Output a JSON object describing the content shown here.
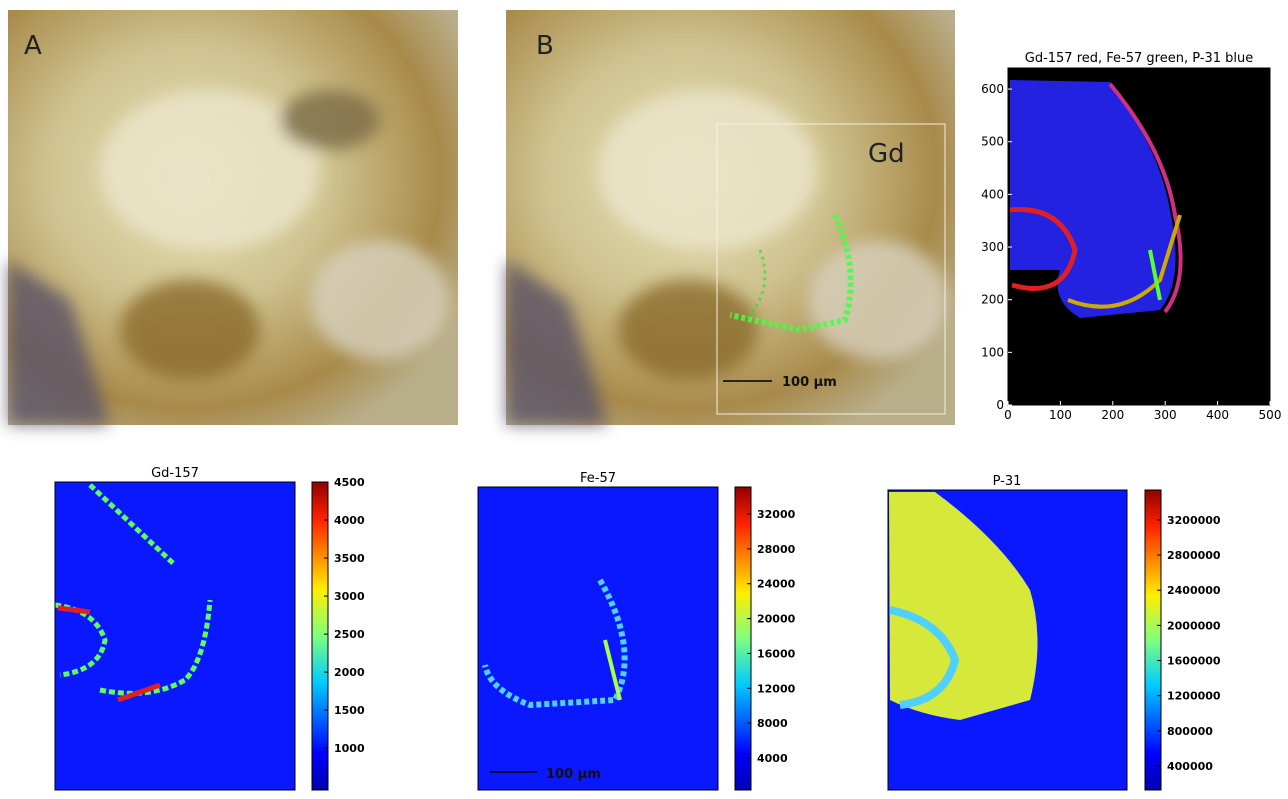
{
  "panels": {
    "a": {
      "label": "A"
    },
    "b": {
      "label": "B",
      "overlay_label": "Gd",
      "scale_bar": "100 µm"
    }
  },
  "rgb_map": {
    "title": "Gd-157 red, Fe-57 green, P-31 blue",
    "xlim": [
      0,
      500
    ],
    "ylim": [
      0,
      640
    ],
    "xticks": [
      0,
      100,
      200,
      300,
      400,
      500
    ],
    "yticks": [
      0,
      100,
      200,
      300,
      400,
      500,
      600
    ]
  },
  "maps": [
    {
      "title": "Gd-157",
      "clim": [
        450,
        4500
      ],
      "colorbar_ticks": [
        1000,
        1500,
        2000,
        2500,
        3000,
        3500,
        4000,
        4500
      ]
    },
    {
      "title": "Fe-57",
      "clim": [
        330,
        35100
      ],
      "colorbar_ticks": [
        4000,
        8000,
        12000,
        16000,
        20000,
        24000,
        28000,
        32000
      ],
      "scale_bar": "100 µm"
    },
    {
      "title": "P-31",
      "clim": [
        127000,
        3540000
      ],
      "colorbar_ticks": [
        400000,
        800000,
        1200000,
        1600000,
        2000000,
        2400000,
        2800000,
        3200000
      ]
    }
  ]
}
